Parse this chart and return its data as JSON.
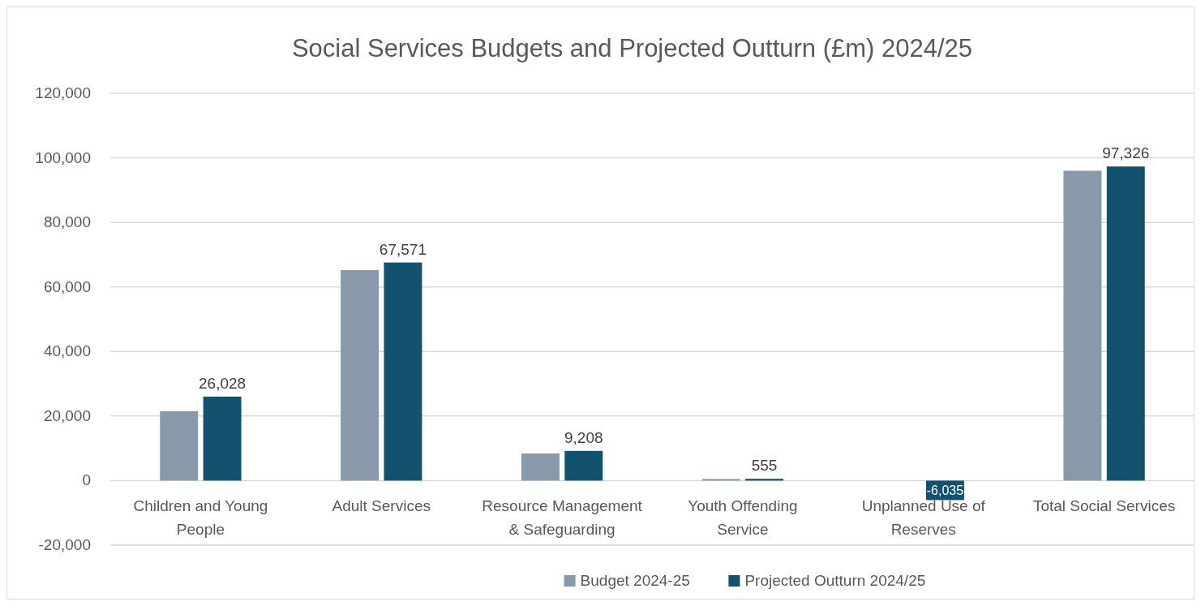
{
  "chart_data": {
    "type": "bar",
    "title": "Social Services Budgets and Projected Outturn (£m) 2024/25",
    "categories": [
      [
        "Children and Young",
        "People"
      ],
      [
        "Adult Services"
      ],
      [
        "Resource Management",
        "& Safeguarding"
      ],
      [
        "Youth Offending",
        "Service"
      ],
      [
        "Unplanned Use of",
        "Reserves"
      ],
      [
        "Total Social Services"
      ]
    ],
    "series": [
      {
        "name": "Budget 2024-25",
        "color": "#8799aa",
        "values": [
          21500,
          65200,
          8400,
          500,
          null,
          96000
        ]
      },
      {
        "name": "Projected Outturn 2024/25",
        "color": "#13526e",
        "values": [
          26028,
          67571,
          9208,
          555,
          -6035,
          97326
        ],
        "value_labels": [
          "26,028",
          "67,571",
          "9,208",
          "555",
          "-6,035",
          "97,326"
        ]
      }
    ],
    "ylim": [
      -20000,
      120000
    ],
    "yticks": [
      {
        "value": -20000,
        "label": "-20,000"
      },
      {
        "value": 0,
        "label": "0"
      },
      {
        "value": 20000,
        "label": "20,000"
      },
      {
        "value": 40000,
        "label": "40,000"
      },
      {
        "value": 60000,
        "label": "60,000"
      },
      {
        "value": 80000,
        "label": "80,000"
      },
      {
        "value": 100000,
        "label": "100,000"
      },
      {
        "value": 120000,
        "label": "120,000"
      }
    ],
    "grid": "y",
    "legend": "bottom"
  }
}
